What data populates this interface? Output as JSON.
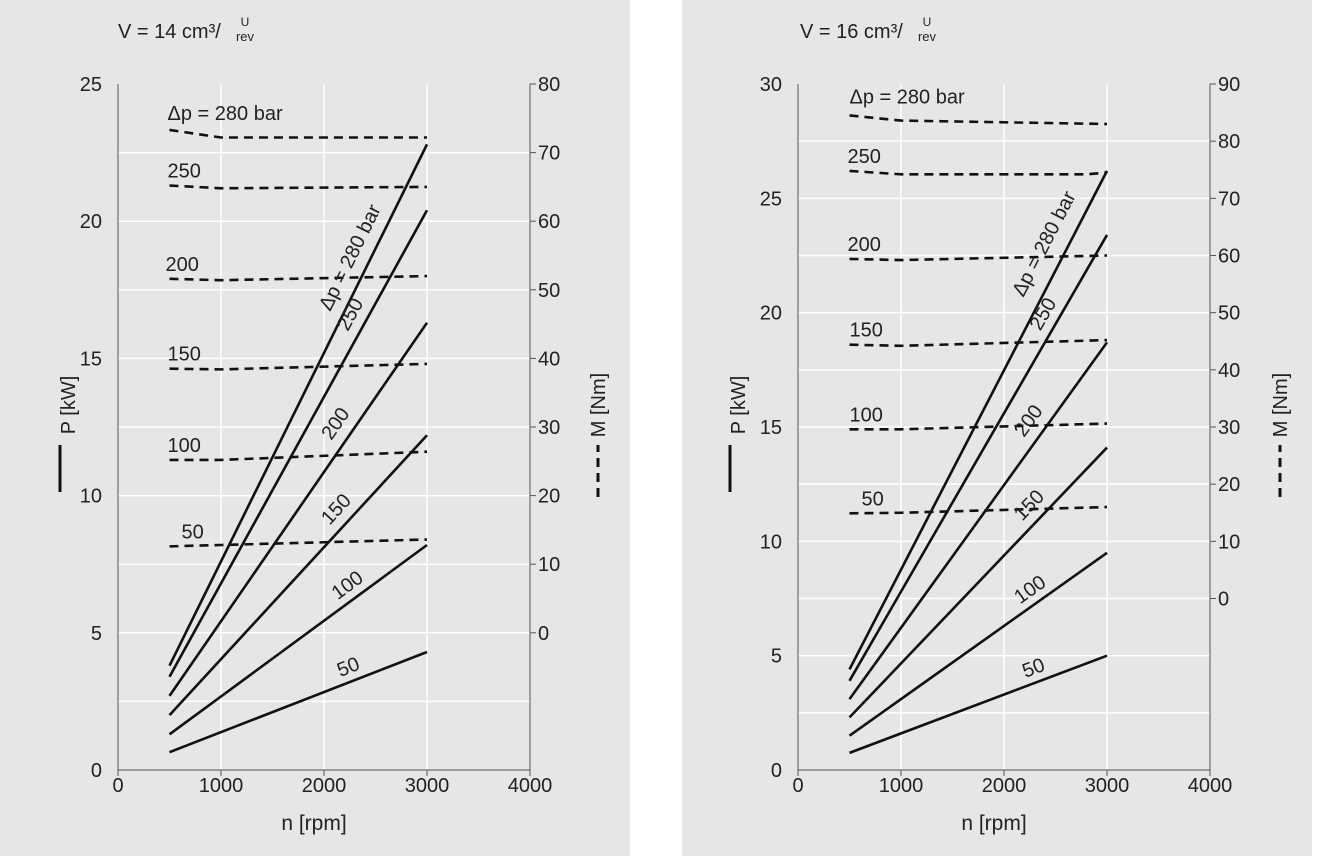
{
  "colors": {
    "panel_background": "#e6e6e6",
    "plot_background": "#e6e6e6",
    "gridline": "#ffffff",
    "line": "#111111",
    "text": "#222222"
  },
  "chart_data": [
    {
      "type": "line",
      "title": "V = 14 cm³/",
      "title_fraction_top": "U",
      "title_fraction_bottom": "rev",
      "xlabel": "n [rpm]",
      "ylabel_left": "P [kW]",
      "ylabel_right": "M [Nm]",
      "xlim": [
        0,
        4000
      ],
      "x_ticks": [
        0,
        1000,
        2000,
        3000,
        4000
      ],
      "ylim_left": [
        0,
        25
      ],
      "y_ticks_left": [
        0,
        5,
        10,
        15,
        20,
        25
      ],
      "ylim_right": [
        -20,
        80
      ],
      "y_ticks_right": [
        0,
        10,
        20,
        30,
        40,
        50,
        60,
        70,
        80
      ],
      "grid": true,
      "legend": {
        "solid_label": "P [kW]",
        "dashed_label": "M [Nm]",
        "placement": "axis labels"
      },
      "power_series": [
        {
          "name": "Δp = 280 bar",
          "x": [
            500,
            3000
          ],
          "y": [
            3.8,
            22.8
          ]
        },
        {
          "name": "250",
          "x": [
            500,
            3000
          ],
          "y": [
            3.4,
            20.4
          ]
        },
        {
          "name": "200",
          "x": [
            500,
            3000
          ],
          "y": [
            2.7,
            16.3
          ]
        },
        {
          "name": "150",
          "x": [
            500,
            3000
          ],
          "y": [
            2.0,
            12.2
          ]
        },
        {
          "name": "100",
          "x": [
            500,
            3000
          ],
          "y": [
            1.3,
            8.2
          ]
        },
        {
          "name": "50",
          "x": [
            500,
            3000
          ],
          "y": [
            0.65,
            4.3
          ]
        }
      ],
      "torque_series": [
        {
          "name": "Δp = 280 bar",
          "x": [
            500,
            1000,
            3000
          ],
          "y": [
            73.3,
            72.2,
            72.2
          ]
        },
        {
          "name": "250",
          "x": [
            500,
            1000,
            3000
          ],
          "y": [
            65.2,
            64.8,
            65.0
          ]
        },
        {
          "name": "200",
          "x": [
            500,
            1000,
            3000
          ],
          "y": [
            51.6,
            51.4,
            52.0
          ]
        },
        {
          "name": "150",
          "x": [
            500,
            1000,
            3000
          ],
          "y": [
            38.5,
            38.4,
            39.2
          ]
        },
        {
          "name": "100",
          "x": [
            500,
            1000,
            3000
          ],
          "y": [
            25.2,
            25.2,
            26.4
          ]
        },
        {
          "name": "50",
          "x": [
            500,
            1000,
            3000
          ],
          "y": [
            12.6,
            12.8,
            13.6
          ]
        }
      ]
    },
    {
      "type": "line",
      "title": "V = 16 cm³/",
      "title_fraction_top": "U",
      "title_fraction_bottom": "rev",
      "xlabel": "n [rpm]",
      "ylabel_left": "P [kW]",
      "ylabel_right": "M [Nm]",
      "xlim": [
        0,
        4000
      ],
      "x_ticks": [
        0,
        1000,
        2000,
        3000,
        4000
      ],
      "ylim_left": [
        0,
        30
      ],
      "y_ticks_left": [
        0,
        5,
        10,
        15,
        20,
        25,
        30
      ],
      "ylim_right": [
        -30,
        90
      ],
      "y_ticks_right": [
        0,
        10,
        20,
        30,
        40,
        50,
        60,
        70,
        80,
        90
      ],
      "grid": true,
      "legend": {
        "solid_label": "P [kW]",
        "dashed_label": "M [Nm]",
        "placement": "axis labels"
      },
      "power_series": [
        {
          "name": "Δp = 280 bar",
          "x": [
            500,
            3000
          ],
          "y": [
            4.4,
            26.2
          ]
        },
        {
          "name": "250",
          "x": [
            500,
            3000
          ],
          "y": [
            3.9,
            23.4
          ]
        },
        {
          "name": "200",
          "x": [
            500,
            3000
          ],
          "y": [
            3.1,
            18.7
          ]
        },
        {
          "name": "150",
          "x": [
            500,
            3000
          ],
          "y": [
            2.3,
            14.1
          ]
        },
        {
          "name": "100",
          "x": [
            500,
            3000
          ],
          "y": [
            1.5,
            9.5
          ]
        },
        {
          "name": "50",
          "x": [
            500,
            3000
          ],
          "y": [
            0.75,
            5.0
          ]
        }
      ],
      "torque_series": [
        {
          "name": "Δp = 280 bar",
          "x": [
            500,
            1000,
            3000
          ],
          "y": [
            84.5,
            83.6,
            83.0
          ]
        },
        {
          "name": "250",
          "x": [
            500,
            1000,
            2800,
            3000
          ],
          "y": [
            74.8,
            74.2,
            74.2,
            74.5
          ]
        },
        {
          "name": "200",
          "x": [
            500,
            1000,
            3000
          ],
          "y": [
            59.4,
            59.2,
            60.0
          ]
        },
        {
          "name": "150",
          "x": [
            500,
            1000,
            3000
          ],
          "y": [
            44.4,
            44.2,
            45.2
          ]
        },
        {
          "name": "100",
          "x": [
            500,
            1000,
            3000
          ],
          "y": [
            29.6,
            29.6,
            30.6
          ]
        },
        {
          "name": "50",
          "x": [
            500,
            1000,
            3000
          ],
          "y": [
            14.9,
            15.0,
            16.0
          ]
        }
      ]
    }
  ]
}
